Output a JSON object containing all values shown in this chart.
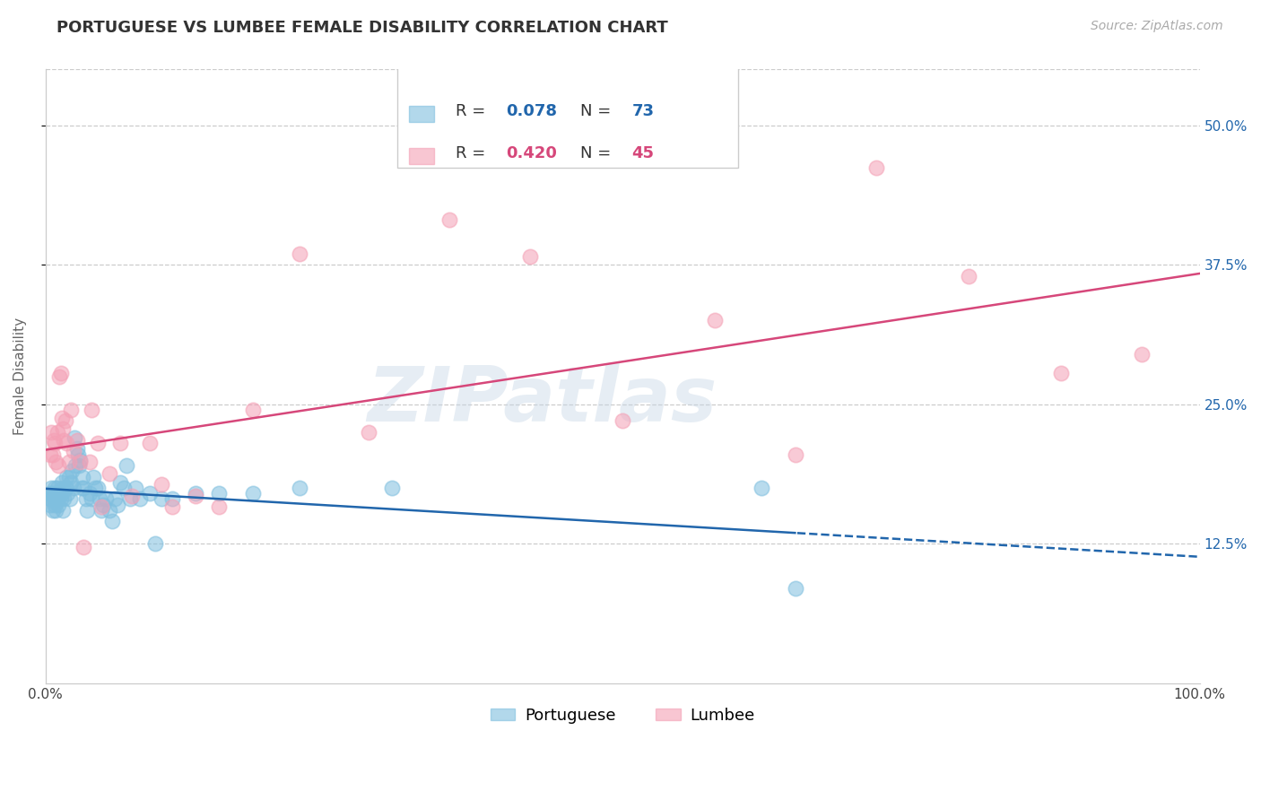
{
  "title": "PORTUGUESE VS LUMBEE FEMALE DISABILITY CORRELATION CHART",
  "source": "Source: ZipAtlas.com",
  "ylabel": "Female Disability",
  "xlim": [
    0.0,
    1.0
  ],
  "ylim": [
    0.0,
    0.55
  ],
  "yticks": [
    0.125,
    0.25,
    0.375,
    0.5
  ],
  "ytick_labels": [
    "12.5%",
    "25.0%",
    "37.5%",
    "50.0%"
  ],
  "xtick_vals": [
    0.0,
    0.5,
    1.0
  ],
  "xtick_labels": [
    "0.0%",
    "",
    "100.0%"
  ],
  "background_color": "#ffffff",
  "watermark": "ZIPatlas",
  "portuguese_color": "#7fbfdf",
  "lumbee_color": "#f4a0b5",
  "portuguese_line_color": "#2166ac",
  "lumbee_line_color": "#d6477a",
  "portuguese_R": 0.078,
  "portuguese_N": 73,
  "lumbee_R": 0.42,
  "lumbee_N": 45,
  "portuguese_x": [
    0.003,
    0.004,
    0.004,
    0.005,
    0.005,
    0.006,
    0.006,
    0.007,
    0.008,
    0.008,
    0.009,
    0.009,
    0.01,
    0.01,
    0.011,
    0.011,
    0.012,
    0.013,
    0.014,
    0.014,
    0.015,
    0.015,
    0.016,
    0.017,
    0.018,
    0.018,
    0.019,
    0.02,
    0.021,
    0.022,
    0.023,
    0.024,
    0.025,
    0.026,
    0.027,
    0.028,
    0.029,
    0.03,
    0.031,
    0.032,
    0.033,
    0.035,
    0.036,
    0.038,
    0.04,
    0.041,
    0.043,
    0.045,
    0.047,
    0.048,
    0.05,
    0.052,
    0.055,
    0.058,
    0.06,
    0.062,
    0.065,
    0.068,
    0.07,
    0.073,
    0.078,
    0.082,
    0.09,
    0.095,
    0.1,
    0.11,
    0.13,
    0.15,
    0.18,
    0.22,
    0.3,
    0.62,
    0.65
  ],
  "portuguese_y": [
    0.165,
    0.17,
    0.16,
    0.175,
    0.165,
    0.17,
    0.155,
    0.165,
    0.175,
    0.16,
    0.17,
    0.155,
    0.175,
    0.165,
    0.17,
    0.16,
    0.17,
    0.165,
    0.18,
    0.17,
    0.175,
    0.155,
    0.165,
    0.175,
    0.185,
    0.175,
    0.17,
    0.185,
    0.165,
    0.18,
    0.19,
    0.175,
    0.22,
    0.195,
    0.21,
    0.205,
    0.195,
    0.2,
    0.175,
    0.185,
    0.175,
    0.165,
    0.155,
    0.17,
    0.165,
    0.185,
    0.175,
    0.175,
    0.165,
    0.155,
    0.16,
    0.165,
    0.155,
    0.145,
    0.165,
    0.16,
    0.18,
    0.175,
    0.195,
    0.165,
    0.175,
    0.165,
    0.17,
    0.125,
    0.165,
    0.165,
    0.17,
    0.17,
    0.17,
    0.175,
    0.175,
    0.175,
    0.085
  ],
  "lumbee_x": [
    0.004,
    0.005,
    0.006,
    0.007,
    0.008,
    0.009,
    0.01,
    0.011,
    0.012,
    0.013,
    0.014,
    0.015,
    0.016,
    0.017,
    0.018,
    0.02,
    0.022,
    0.024,
    0.027,
    0.03,
    0.033,
    0.038,
    0.04,
    0.045,
    0.048,
    0.055,
    0.065,
    0.075,
    0.09,
    0.1,
    0.11,
    0.13,
    0.15,
    0.18,
    0.22,
    0.28,
    0.35,
    0.42,
    0.5,
    0.58,
    0.65,
    0.72,
    0.8,
    0.88,
    0.95
  ],
  "lumbee_y": [
    0.205,
    0.225,
    0.205,
    0.218,
    0.215,
    0.198,
    0.225,
    0.195,
    0.275,
    0.278,
    0.238,
    0.228,
    0.218,
    0.235,
    0.215,
    0.198,
    0.245,
    0.208,
    0.218,
    0.198,
    0.122,
    0.198,
    0.245,
    0.215,
    0.158,
    0.188,
    0.215,
    0.168,
    0.215,
    0.178,
    0.158,
    0.168,
    0.158,
    0.245,
    0.385,
    0.225,
    0.415,
    0.382,
    0.235,
    0.325,
    0.205,
    0.462,
    0.365,
    0.278,
    0.295
  ]
}
